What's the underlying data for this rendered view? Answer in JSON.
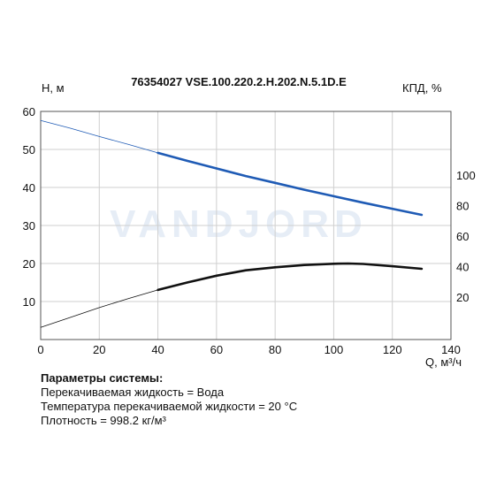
{
  "chart_data": {
    "type": "line",
    "title": "76354027 VSE.100.220.2.H.202.N.5.1D.E",
    "watermark": "VANDJORD",
    "xlabel": "Q, м³/ч",
    "ylabel_left": "H, м",
    "ylabel_right": "КПД, %",
    "xlim": [
      0,
      140
    ],
    "ylim_left": [
      0,
      60
    ],
    "x_ticks": [
      0,
      20,
      40,
      60,
      80,
      100,
      120,
      140
    ],
    "y_ticks_left": [
      10,
      20,
      30,
      40,
      50,
      60
    ],
    "ylim_right": [
      -8,
      142
    ],
    "y_ticks_right": [
      20,
      40,
      60,
      80,
      100
    ],
    "grid": true,
    "series": [
      {
        "axis": "left",
        "color": "#1f5bb5",
        "points": [
          [
            0,
            57.6
          ],
          [
            10,
            55.6
          ],
          [
            20,
            53.4
          ],
          [
            30,
            51.3
          ],
          [
            40,
            49.1
          ],
          [
            50,
            47.0
          ],
          [
            60,
            45.0
          ],
          [
            70,
            43.0
          ],
          [
            80,
            41.2
          ],
          [
            90,
            39.4
          ],
          [
            100,
            37.7
          ],
          [
            110,
            36.0
          ],
          [
            120,
            34.4
          ],
          [
            130,
            32.8
          ]
        ],
        "operating_from": 40
      },
      {
        "axis": "right",
        "color": "#111111",
        "points": [
          [
            0,
            0
          ],
          [
            10,
            6.5
          ],
          [
            20,
            13
          ],
          [
            30,
            19
          ],
          [
            40,
            24.6
          ],
          [
            50,
            29.5
          ],
          [
            60,
            34
          ],
          [
            70,
            37.5
          ],
          [
            80,
            39.5
          ],
          [
            90,
            41
          ],
          [
            100,
            41.8
          ],
          [
            105,
            42
          ],
          [
            110,
            41.7
          ],
          [
            120,
            40.2
          ],
          [
            130,
            38.5
          ]
        ],
        "operating_from": 40
      }
    ]
  },
  "params": {
    "header": "Параметры системы:",
    "lines": [
      "Перекачиваемая жидкость = Вода",
      "Температура перекачиваемой жидкости = 20 °C",
      "Плотность = 998.2 кг/м³"
    ]
  }
}
